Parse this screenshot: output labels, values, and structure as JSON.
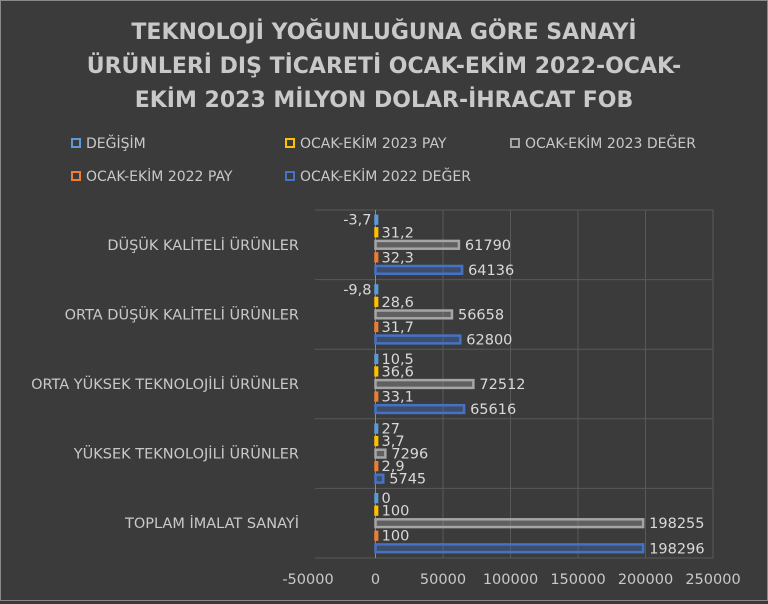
{
  "chart_data": {
    "type": "bar",
    "orientation": "horizontal",
    "title_lines": [
      "TEKNOLOJİ YOĞUNLUĞUNA GÖRE SANAYİ",
      "ÜRÜNLERİ DIŞ TİCARETİ OCAK-EKİM 2022-OCAK-",
      "EKİM 2023 MİLYON DOLAR-İHRACAT FOB"
    ],
    "categories": [
      "DÜŞÜK KALİTELİ ÜRÜNLER",
      "ORTA DÜŞÜK KALİTELİ ÜRÜNLER",
      "ORTA YÜKSEK TEKNOLOJİLİ ÜRÜNLER",
      "YÜKSEK TEKNOLOJİLİ ÜRÜNLER",
      "TOPLAM İMALAT SANAYİ"
    ],
    "series": [
      {
        "name": "DEĞİŞİM",
        "color": "#5b9bd5",
        "values": [
          -3.7,
          -9.8,
          10.5,
          27,
          0
        ],
        "labels": [
          "-3,7",
          "-9,8",
          "10,5",
          "27",
          "0"
        ]
      },
      {
        "name": "OCAK-EKİM 2023 PAY",
        "color": "#ffc000",
        "values": [
          31.2,
          28.6,
          36.6,
          3.7,
          100
        ],
        "labels": [
          "31,2",
          "28,6",
          "36,6",
          "3,7",
          "100"
        ]
      },
      {
        "name": "OCAK-EKİM 2023 DEĞER",
        "color": "#a5a5a5",
        "values": [
          61790,
          56658,
          72512,
          7296,
          198255
        ],
        "labels": [
          "61790",
          "56658",
          "72512",
          "7296",
          "198255"
        ]
      },
      {
        "name": "OCAK-EKİM 2022 PAY",
        "color": "#ed7d31",
        "values": [
          32.3,
          31.7,
          33.1,
          2.9,
          100
        ],
        "labels": [
          "32,3",
          "31,7",
          "33,1",
          "2,9",
          "100"
        ]
      },
      {
        "name": "OCAK-EKİM 2022 DEĞER",
        "color": "#4472c4",
        "values": [
          64136,
          62800,
          65616,
          5745,
          198296
        ],
        "labels": [
          "64136",
          "62800",
          "65616",
          "5745",
          "198296"
        ]
      }
    ],
    "legend_order": [
      0,
      1,
      2,
      3,
      4
    ],
    "legend_placement": "top",
    "xlim": [
      -50000,
      250000
    ],
    "xticks": [
      -50000,
      0,
      50000,
      100000,
      150000,
      200000,
      250000
    ],
    "grid": true
  }
}
